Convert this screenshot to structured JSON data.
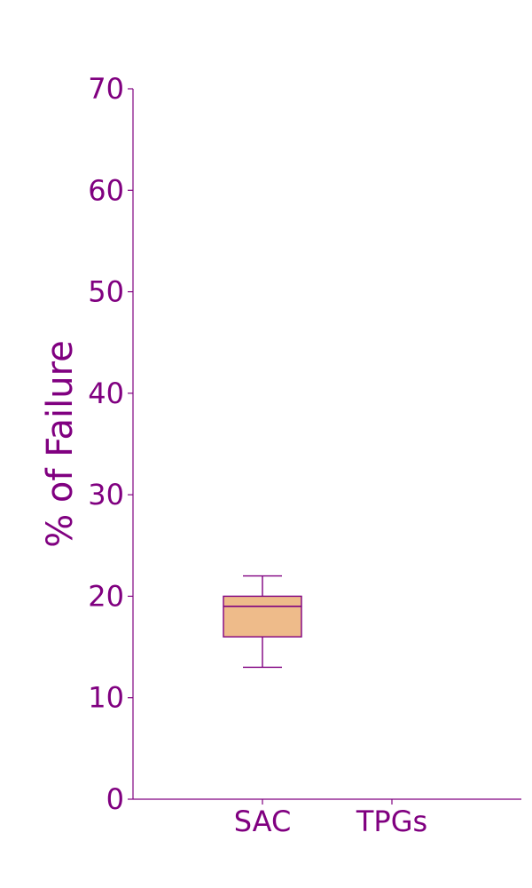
{
  "chart_data": {
    "type": "box",
    "title": "",
    "xlabel": "",
    "ylabel": "% of Failure",
    "ylim": [
      0,
      70
    ],
    "yticks": [
      0,
      10,
      20,
      30,
      40,
      50,
      60,
      70
    ],
    "categories": [
      "SAC",
      "TPGs"
    ],
    "boxes": [
      {
        "category": "SAC",
        "whisker_low": 13,
        "q1": 16,
        "median": 19,
        "q3": 20,
        "whisker_high": 22
      },
      {
        "category": "TPGs",
        "whisker_low": null,
        "q1": null,
        "median": null,
        "q3": null,
        "whisker_high": null
      }
    ],
    "grid": false,
    "colors": {
      "text": "#800080",
      "axis": "#800080",
      "box_fill": "#eebb8a",
      "box_edge": "#800080"
    }
  }
}
